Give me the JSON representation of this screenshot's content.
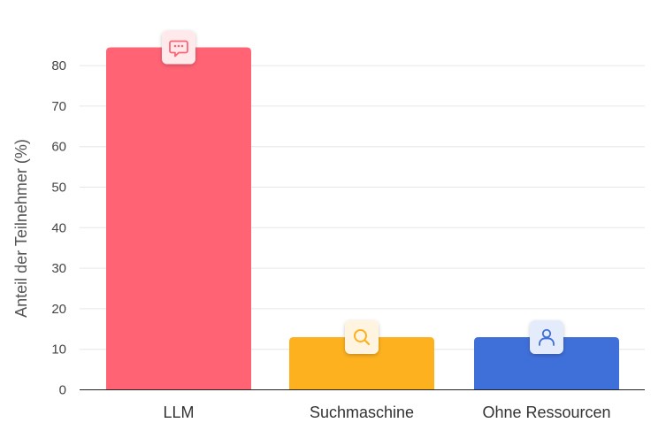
{
  "chart_data": {
    "type": "bar",
    "ylabel": "Anteil der Teilnehmer (%)",
    "categories": [
      "LLM",
      "Suchmaschine",
      "Ohne Ressourcen"
    ],
    "values": [
      84.5,
      13,
      13
    ],
    "ylim": [
      0,
      90
    ],
    "yticks": [
      0,
      10,
      20,
      30,
      40,
      50,
      60,
      70,
      80
    ],
    "grid": true,
    "bar_colors": [
      "#ff6374",
      "#fdb11f",
      "#3f6fd9"
    ],
    "badge_icons": [
      "chat-icon",
      "search-icon",
      "user-icon"
    ]
  }
}
